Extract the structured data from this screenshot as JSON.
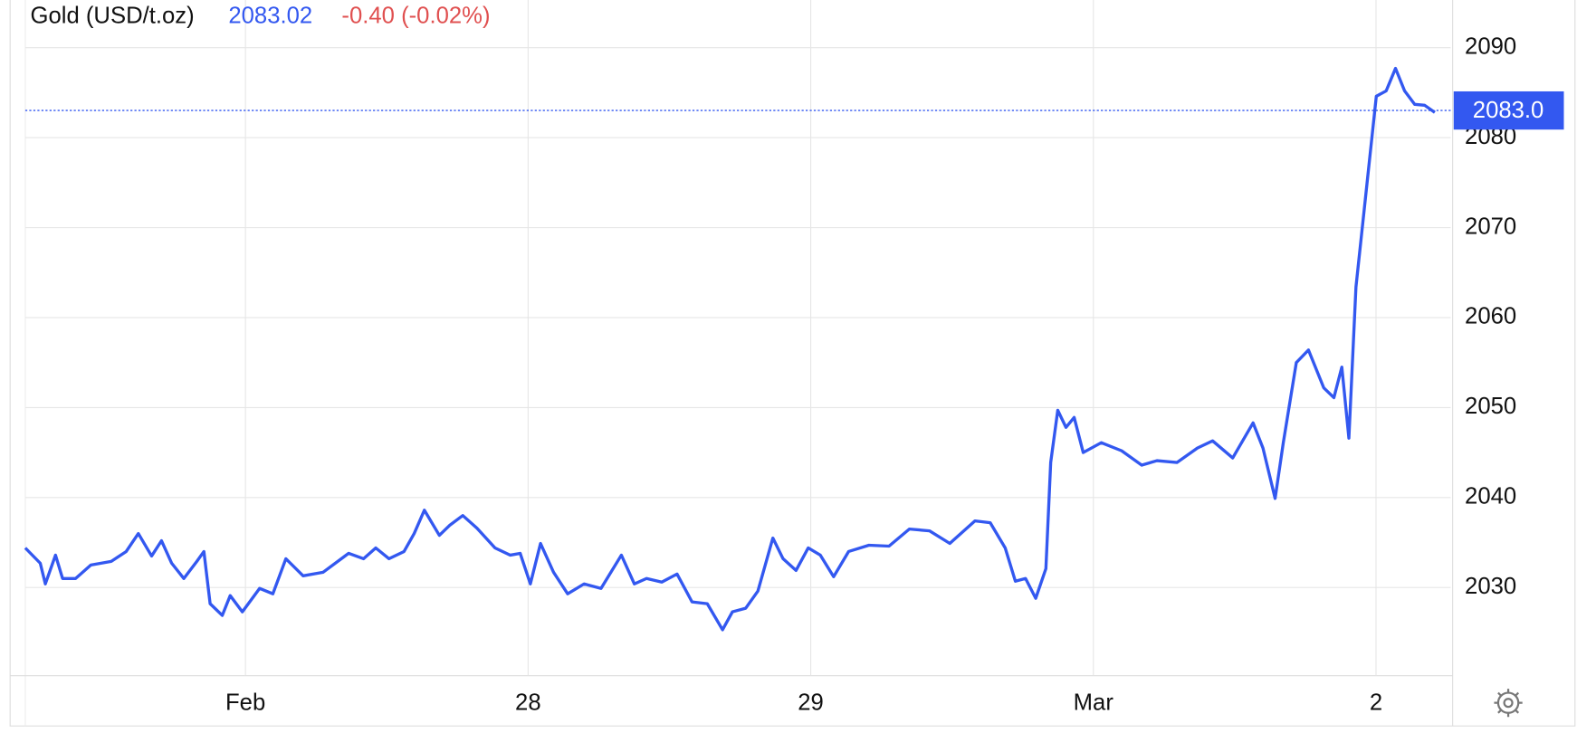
{
  "chart_data": {
    "type": "line",
    "title": "Gold (USD/t.oz)",
    "change": "-0.40 (-0.02%)",
    "last_price": 2083.02,
    "last_price_label": "2083.0",
    "x": [
      26.221,
      26.274,
      26.292,
      26.328,
      26.353,
      26.399,
      26.453,
      26.525,
      26.578,
      26.621,
      26.668,
      26.703,
      26.739,
      26.782,
      26.828,
      26.853,
      26.875,
      26.918,
      26.946,
      26.989,
      27.05,
      27.097,
      27.143,
      27.204,
      27.275,
      27.365,
      27.418,
      27.461,
      27.508,
      27.561,
      27.597,
      27.633,
      27.686,
      27.722,
      27.769,
      27.819,
      27.883,
      27.937,
      27.972,
      28.008,
      28.044,
      28.09,
      28.14,
      28.198,
      28.258,
      28.33,
      28.376,
      28.419,
      28.473,
      28.527,
      28.58,
      28.634,
      28.688,
      28.723,
      28.77,
      28.813,
      28.866,
      28.902,
      28.948,
      28.991,
      29.034,
      29.081,
      29.134,
      29.206,
      29.277,
      29.349,
      29.42,
      29.492,
      29.581,
      29.635,
      29.688,
      29.724,
      29.76,
      29.796,
      29.832,
      29.849,
      29.874,
      29.903,
      29.932,
      29.964,
      30.028,
      30.1,
      30.171,
      30.225,
      30.296,
      30.368,
      30.422,
      30.493,
      30.565,
      30.6,
      30.643,
      30.672,
      30.718,
      30.761,
      30.815,
      30.851,
      30.879,
      30.904,
      30.929,
      30.965,
      31.001,
      31.036,
      31.069,
      31.101,
      31.137,
      31.172,
      31.208
    ],
    "series": [
      {
        "name": "Gold",
        "color": "#3358f0",
        "values": [
          2034.4,
          2032.7,
          2030.4,
          2033.6,
          2031.0,
          2031.0,
          2032.5,
          2032.9,
          2034.0,
          2036.0,
          2033.5,
          2035.2,
          2032.7,
          2031.0,
          2032.9,
          2034.0,
          2028.2,
          2026.9,
          2029.1,
          2027.3,
          2029.9,
          2029.3,
          2033.2,
          2031.3,
          2031.7,
          2033.8,
          2033.2,
          2034.4,
          2033.2,
          2034.0,
          2036.0,
          2038.6,
          2035.8,
          2036.9,
          2038.0,
          2036.6,
          2034.4,
          2033.6,
          2033.8,
          2030.4,
          2034.9,
          2031.7,
          2029.3,
          2030.4,
          2029.9,
          2033.6,
          2030.4,
          2031.0,
          2030.6,
          2031.5,
          2028.4,
          2028.2,
          2025.3,
          2027.3,
          2027.7,
          2029.6,
          2035.5,
          2033.2,
          2031.9,
          2034.4,
          2033.6,
          2031.2,
          2034.0,
          2034.7,
          2034.6,
          2036.5,
          2036.3,
          2034.9,
          2037.4,
          2037.2,
          2034.4,
          2030.7,
          2031.0,
          2028.8,
          2032.1,
          2043.9,
          2049.7,
          2047.8,
          2048.9,
          2045.0,
          2046.1,
          2045.2,
          2043.6,
          2044.1,
          2043.9,
          2045.5,
          2046.3,
          2044.4,
          2048.3,
          2045.5,
          2039.9,
          2046.1,
          2055.0,
          2056.4,
          2052.2,
          2051.1,
          2054.5,
          2046.6,
          2063.4,
          2074.0,
          2084.6,
          2085.2,
          2087.7,
          2085.2,
          2083.7,
          2083.6,
          2082.8
        ]
      }
    ],
    "xlim": [
      26.221,
      31.264
    ],
    "xticks": [
      {
        "value": 27,
        "label": "Feb"
      },
      28,
      29,
      {
        "value": 30,
        "label": "Mar"
      },
      {
        "value": 31,
        "label": "2"
      }
    ],
    "ylim": [
      2020.2,
      2095.3
    ],
    "yticks": [
      2030,
      2040,
      2050,
      2060,
      2070,
      2080,
      2090
    ],
    "grid": true
  }
}
